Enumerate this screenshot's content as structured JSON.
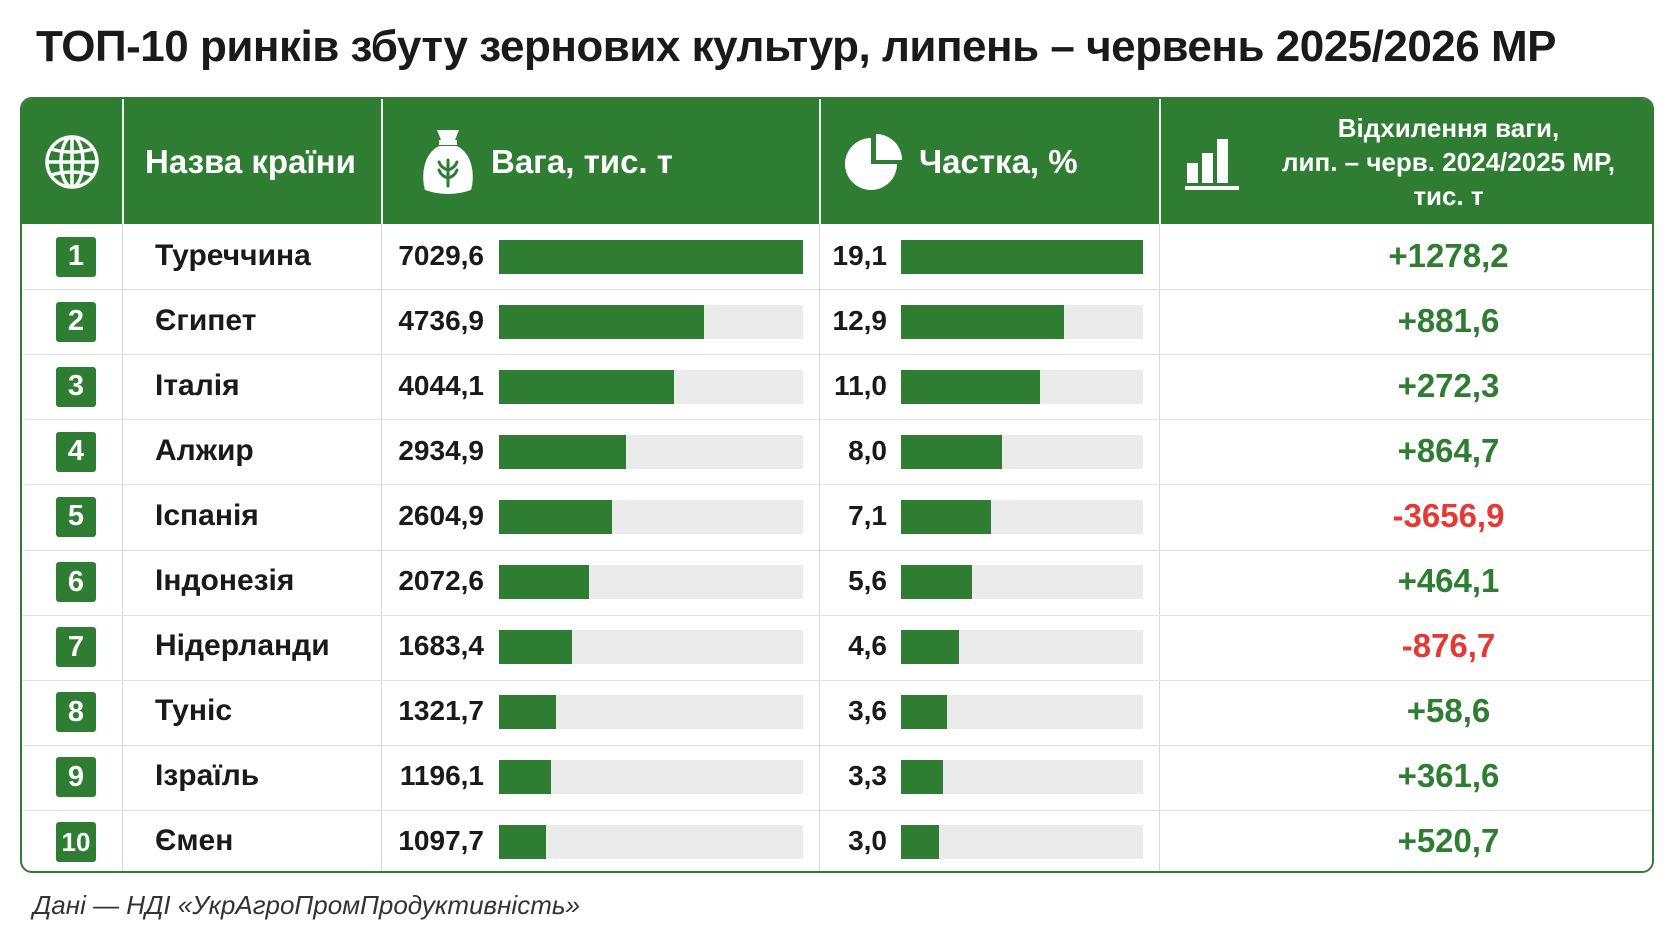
{
  "title": "ТОП-10 ринків збуту зернових культур, липень – червень 2025/2026 МР",
  "colors": {
    "accent": "#2e7d32",
    "track": "#ebebeb",
    "positive": "#2e7d32",
    "negative": "#e53935"
  },
  "header": {
    "globe_icon": "globe-icon",
    "country_label": "Назва країни",
    "weight_icon": "grain-sack-icon",
    "weight_label": "Вага, тис. т",
    "share_icon": "pie-chart-icon",
    "share_label": "Частка, %",
    "deviation_icon": "bar-chart-icon",
    "deviation_line1": "Відхилення ваги,",
    "deviation_line2": "лип. – черв. 2024/2025 МР,",
    "deviation_line3": "тис. т"
  },
  "chart_data": {
    "type": "table",
    "weight_max": 7029.6,
    "share_max": 19.1,
    "rows": [
      {
        "rank": "1",
        "country": "Туреччина",
        "weight": 7029.6,
        "weight_text": "7029,6",
        "share": 19.1,
        "share_text": "19,1",
        "deviation": 1278.2,
        "deviation_text": "+1278,2"
      },
      {
        "rank": "2",
        "country": "Єгипет",
        "weight": 4736.9,
        "weight_text": "4736,9",
        "share": 12.9,
        "share_text": "12,9",
        "deviation": 881.6,
        "deviation_text": "+881,6"
      },
      {
        "rank": "3",
        "country": "Італія",
        "weight": 4044.1,
        "weight_text": "4044,1",
        "share": 11.0,
        "share_text": "11,0",
        "deviation": 272.3,
        "deviation_text": "+272,3"
      },
      {
        "rank": "4",
        "country": "Алжир",
        "weight": 2934.9,
        "weight_text": "2934,9",
        "share": 8.0,
        "share_text": "8,0",
        "deviation": 864.7,
        "deviation_text": "+864,7"
      },
      {
        "rank": "5",
        "country": "Іспанія",
        "weight": 2604.9,
        "weight_text": "2604,9",
        "share": 7.1,
        "share_text": "7,1",
        "deviation": -3656.9,
        "deviation_text": "-3656,9"
      },
      {
        "rank": "6",
        "country": "Індонезія",
        "weight": 2072.6,
        "weight_text": "2072,6",
        "share": 5.6,
        "share_text": "5,6",
        "deviation": 464.1,
        "deviation_text": "+464,1"
      },
      {
        "rank": "7",
        "country": "Нідерланди",
        "weight": 1683.4,
        "weight_text": "1683,4",
        "share": 4.6,
        "share_text": "4,6",
        "deviation": -876.7,
        "deviation_text": "-876,7"
      },
      {
        "rank": "8",
        "country": "Туніс",
        "weight": 1321.7,
        "weight_text": "1321,7",
        "share": 3.6,
        "share_text": "3,6",
        "deviation": 58.6,
        "deviation_text": "+58,6"
      },
      {
        "rank": "9",
        "country": "Ізраїль",
        "weight": 1196.1,
        "weight_text": "1196,1",
        "share": 3.3,
        "share_text": "3,3",
        "deviation": 361.6,
        "deviation_text": "+361,6"
      },
      {
        "rank": "10",
        "country": "Ємен",
        "weight": 1097.7,
        "weight_text": "1097,7",
        "share": 3.0,
        "share_text": "3,0",
        "deviation": 520.7,
        "deviation_text": "+520,7"
      }
    ]
  },
  "source": "Дані — НДІ «УкрАгроПромПродуктивність»"
}
